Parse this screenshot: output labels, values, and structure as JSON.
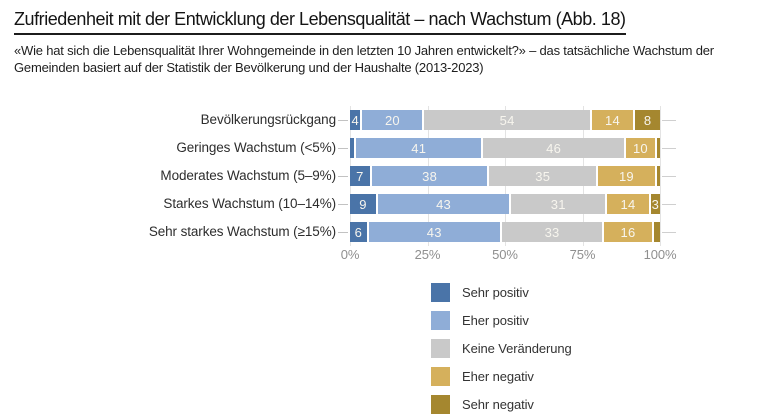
{
  "header": {
    "title": "Zufriedenheit mit der Entwicklung der Lebensqualität – nach Wachstum  (Abb. 18)",
    "subtitle": "«Wie hat sich die Lebensqualität Ihrer Wohngemeinde in den letzten 10 Jahren entwickelt?» – das tatsächliche Wachstum der Gemeinden basiert auf der Statistik der Bevölkerung und der Haushalte (2013-2023)"
  },
  "chart_data": {
    "type": "bar",
    "stacked": true,
    "orientation": "horizontal",
    "title": "Zufriedenheit mit der Entwicklung der Lebensqualität – nach Wachstum (Abb. 18)",
    "categories": [
      "Bevölkerungsrückgang",
      "Geringes Wachstum (<5%)",
      "Moderates Wachstum (5–9%)",
      "Starkes Wachstum (10–14%)",
      "Sehr starkes Wachstum (≥15%)"
    ],
    "series": [
      {
        "name": "Sehr positiv",
        "color": "#4a74a8",
        "values": [
          4,
          2,
          7,
          9,
          6
        ]
      },
      {
        "name": "Eher positiv",
        "color": "#8fadd7",
        "values": [
          20,
          41,
          38,
          43,
          43
        ]
      },
      {
        "name": "Keine Veränderung",
        "color": "#c9c9c9",
        "values": [
          54,
          46,
          35,
          31,
          33
        ]
      },
      {
        "name": "Eher negativ",
        "color": "#d5b05c",
        "values": [
          14,
          10,
          19,
          14,
          16
        ]
      },
      {
        "name": "Sehr negativ",
        "color": "#a5872f",
        "values": [
          8,
          1,
          1,
          3,
          2
        ]
      }
    ],
    "x_ticks": [
      "0%",
      "25%",
      "50%",
      "75%",
      "100%"
    ],
    "xlim": [
      0,
      100
    ],
    "grid": true,
    "value_label_min": 3,
    "legend_position": "bottom-right",
    "value_label_color": "#f7f5ee"
  }
}
